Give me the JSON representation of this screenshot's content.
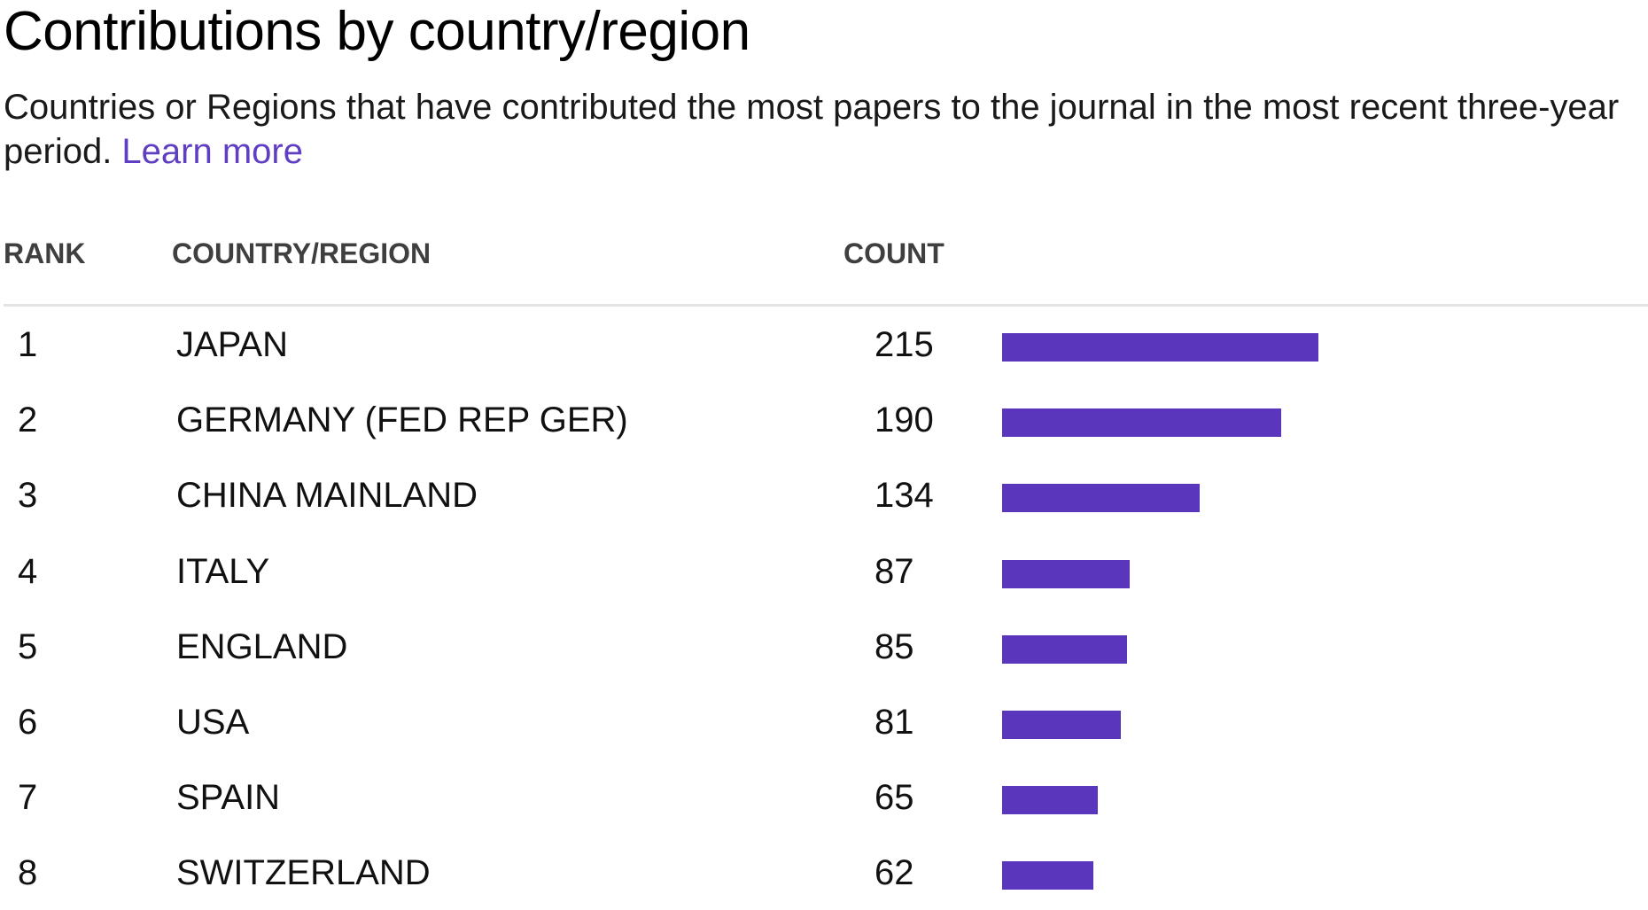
{
  "title": "Contributions by country/region",
  "subtitle": "Countries or Regions that have contributed the most papers to the journal in the most recent three-year period. ",
  "learn_more": "Learn more",
  "colors": {
    "bar": "#5a36bd",
    "link": "#5f3ec4"
  },
  "columns": {
    "rank": "RANK",
    "country": "COUNTRY/REGION",
    "count": "COUNT"
  },
  "rows": [
    {
      "rank": "1",
      "country": "JAPAN",
      "count": "215"
    },
    {
      "rank": "2",
      "country": "GERMANY (FED REP GER)",
      "count": "190"
    },
    {
      "rank": "3",
      "country": "CHINA MAINLAND",
      "count": "134"
    },
    {
      "rank": "4",
      "country": "ITALY",
      "count": "87"
    },
    {
      "rank": "5",
      "country": "ENGLAND",
      "count": "85"
    },
    {
      "rank": "6",
      "country": "USA",
      "count": "81"
    },
    {
      "rank": "7",
      "country": "SPAIN",
      "count": "65"
    },
    {
      "rank": "8",
      "country": "SWITZERLAND",
      "count": "62"
    }
  ],
  "chart_data": {
    "type": "bar",
    "orientation": "horizontal",
    "categories": [
      "JAPAN",
      "GERMANY (FED REP GER)",
      "CHINA MAINLAND",
      "ITALY",
      "ENGLAND",
      "USA",
      "SPAIN",
      "SWITZERLAND"
    ],
    "values": [
      215,
      190,
      134,
      87,
      85,
      81,
      65,
      62
    ],
    "title": "Contributions by country/region",
    "xlabel": "COUNT",
    "ylabel": "COUNTRY/REGION",
    "grid": false
  }
}
